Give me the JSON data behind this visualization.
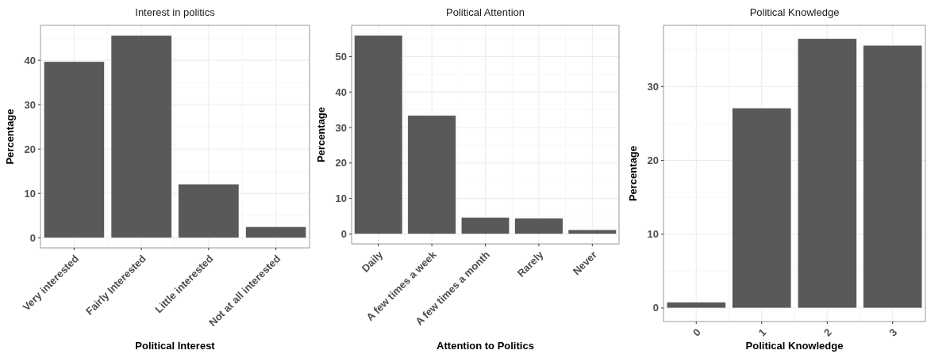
{
  "chart_data": [
    {
      "type": "bar",
      "title": "Interest in politics",
      "xlabel": "Political Interest",
      "ylabel": "Percentage",
      "categories": [
        "Very interested",
        "Fairly Interested",
        "Little interested",
        "Not at all interested"
      ],
      "values": [
        39.7,
        45.6,
        12.1,
        2.5
      ],
      "color": "#595959",
      "ylim": [
        -2.28,
        47.88
      ],
      "yticks": [
        0,
        10,
        20,
        30,
        40
      ],
      "grid": true
    },
    {
      "type": "bar",
      "title": "Political Attention",
      "xlabel": "Attention to Politics",
      "ylabel": "Percentage",
      "categories": [
        "Daily",
        "A few times a week",
        "A few times a month",
        "Rarely",
        "Never"
      ],
      "values": [
        56.0,
        33.4,
        4.7,
        4.5,
        1.2
      ],
      "color": "#595959",
      "ylim": [
        -2.8,
        58.8
      ],
      "yticks": [
        0,
        10,
        20,
        30,
        40,
        50
      ],
      "grid": true
    },
    {
      "type": "bar",
      "title": "Political Knowledge",
      "xlabel": "Political Knowledge",
      "ylabel": "Percentage",
      "categories": [
        "0",
        "1",
        "2",
        "3"
      ],
      "values": [
        0.8,
        27.1,
        36.5,
        35.6
      ],
      "color": "#595959",
      "ylim": [
        -1.83,
        38.3
      ],
      "yticks": [
        0,
        10,
        20,
        30
      ],
      "grid": true
    }
  ]
}
